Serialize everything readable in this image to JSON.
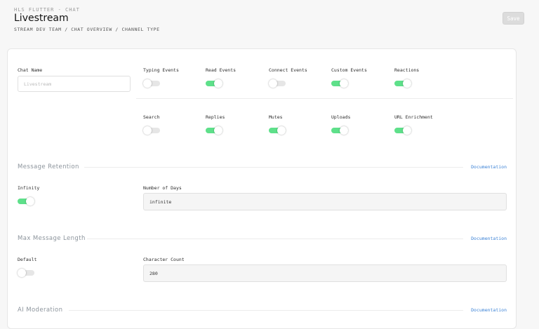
{
  "header": {
    "eyebrow": "HLS FLUTTER - CHAT",
    "title": "Livestream",
    "breadcrumb": "STREAM DEV TEAM / CHAT OVERVIEW / CHANNEL TYPE",
    "save_label": "Save"
  },
  "chat_name": {
    "label": "Chat Name",
    "placeholder": "Livestream"
  },
  "toggles_row1": [
    {
      "label": "Typing Events",
      "on": false
    },
    {
      "label": "Read Events",
      "on": true
    },
    {
      "label": "Connect Events",
      "on": false
    },
    {
      "label": "Custom Events",
      "on": true
    },
    {
      "label": "Reactions",
      "on": true
    }
  ],
  "toggles_row2": [
    {
      "label": "Search",
      "on": false
    },
    {
      "label": "Replies",
      "on": true
    },
    {
      "label": "Mutes",
      "on": true
    },
    {
      "label": "Uploads",
      "on": true
    },
    {
      "label": "URL Enrichment",
      "on": true
    }
  ],
  "message_retention": {
    "title": "Message Retention",
    "link": "Documentation",
    "toggle_label": "Infinity",
    "toggle_on": true,
    "field_label": "Number of Days",
    "field_value": "infinite"
  },
  "max_message_length": {
    "title": "Max Message Length",
    "link": "Documentation",
    "toggle_label": "Default",
    "toggle_on": false,
    "field_label": "Character Count",
    "field_value": "280"
  },
  "ai_moderation": {
    "title": "AI Moderation",
    "link": "Documentation"
  },
  "colors": {
    "toggle_on": "#5ee08a",
    "toggle_off": "#e6e6e6",
    "link": "#3b82d6",
    "section_title": "#8c949c"
  }
}
